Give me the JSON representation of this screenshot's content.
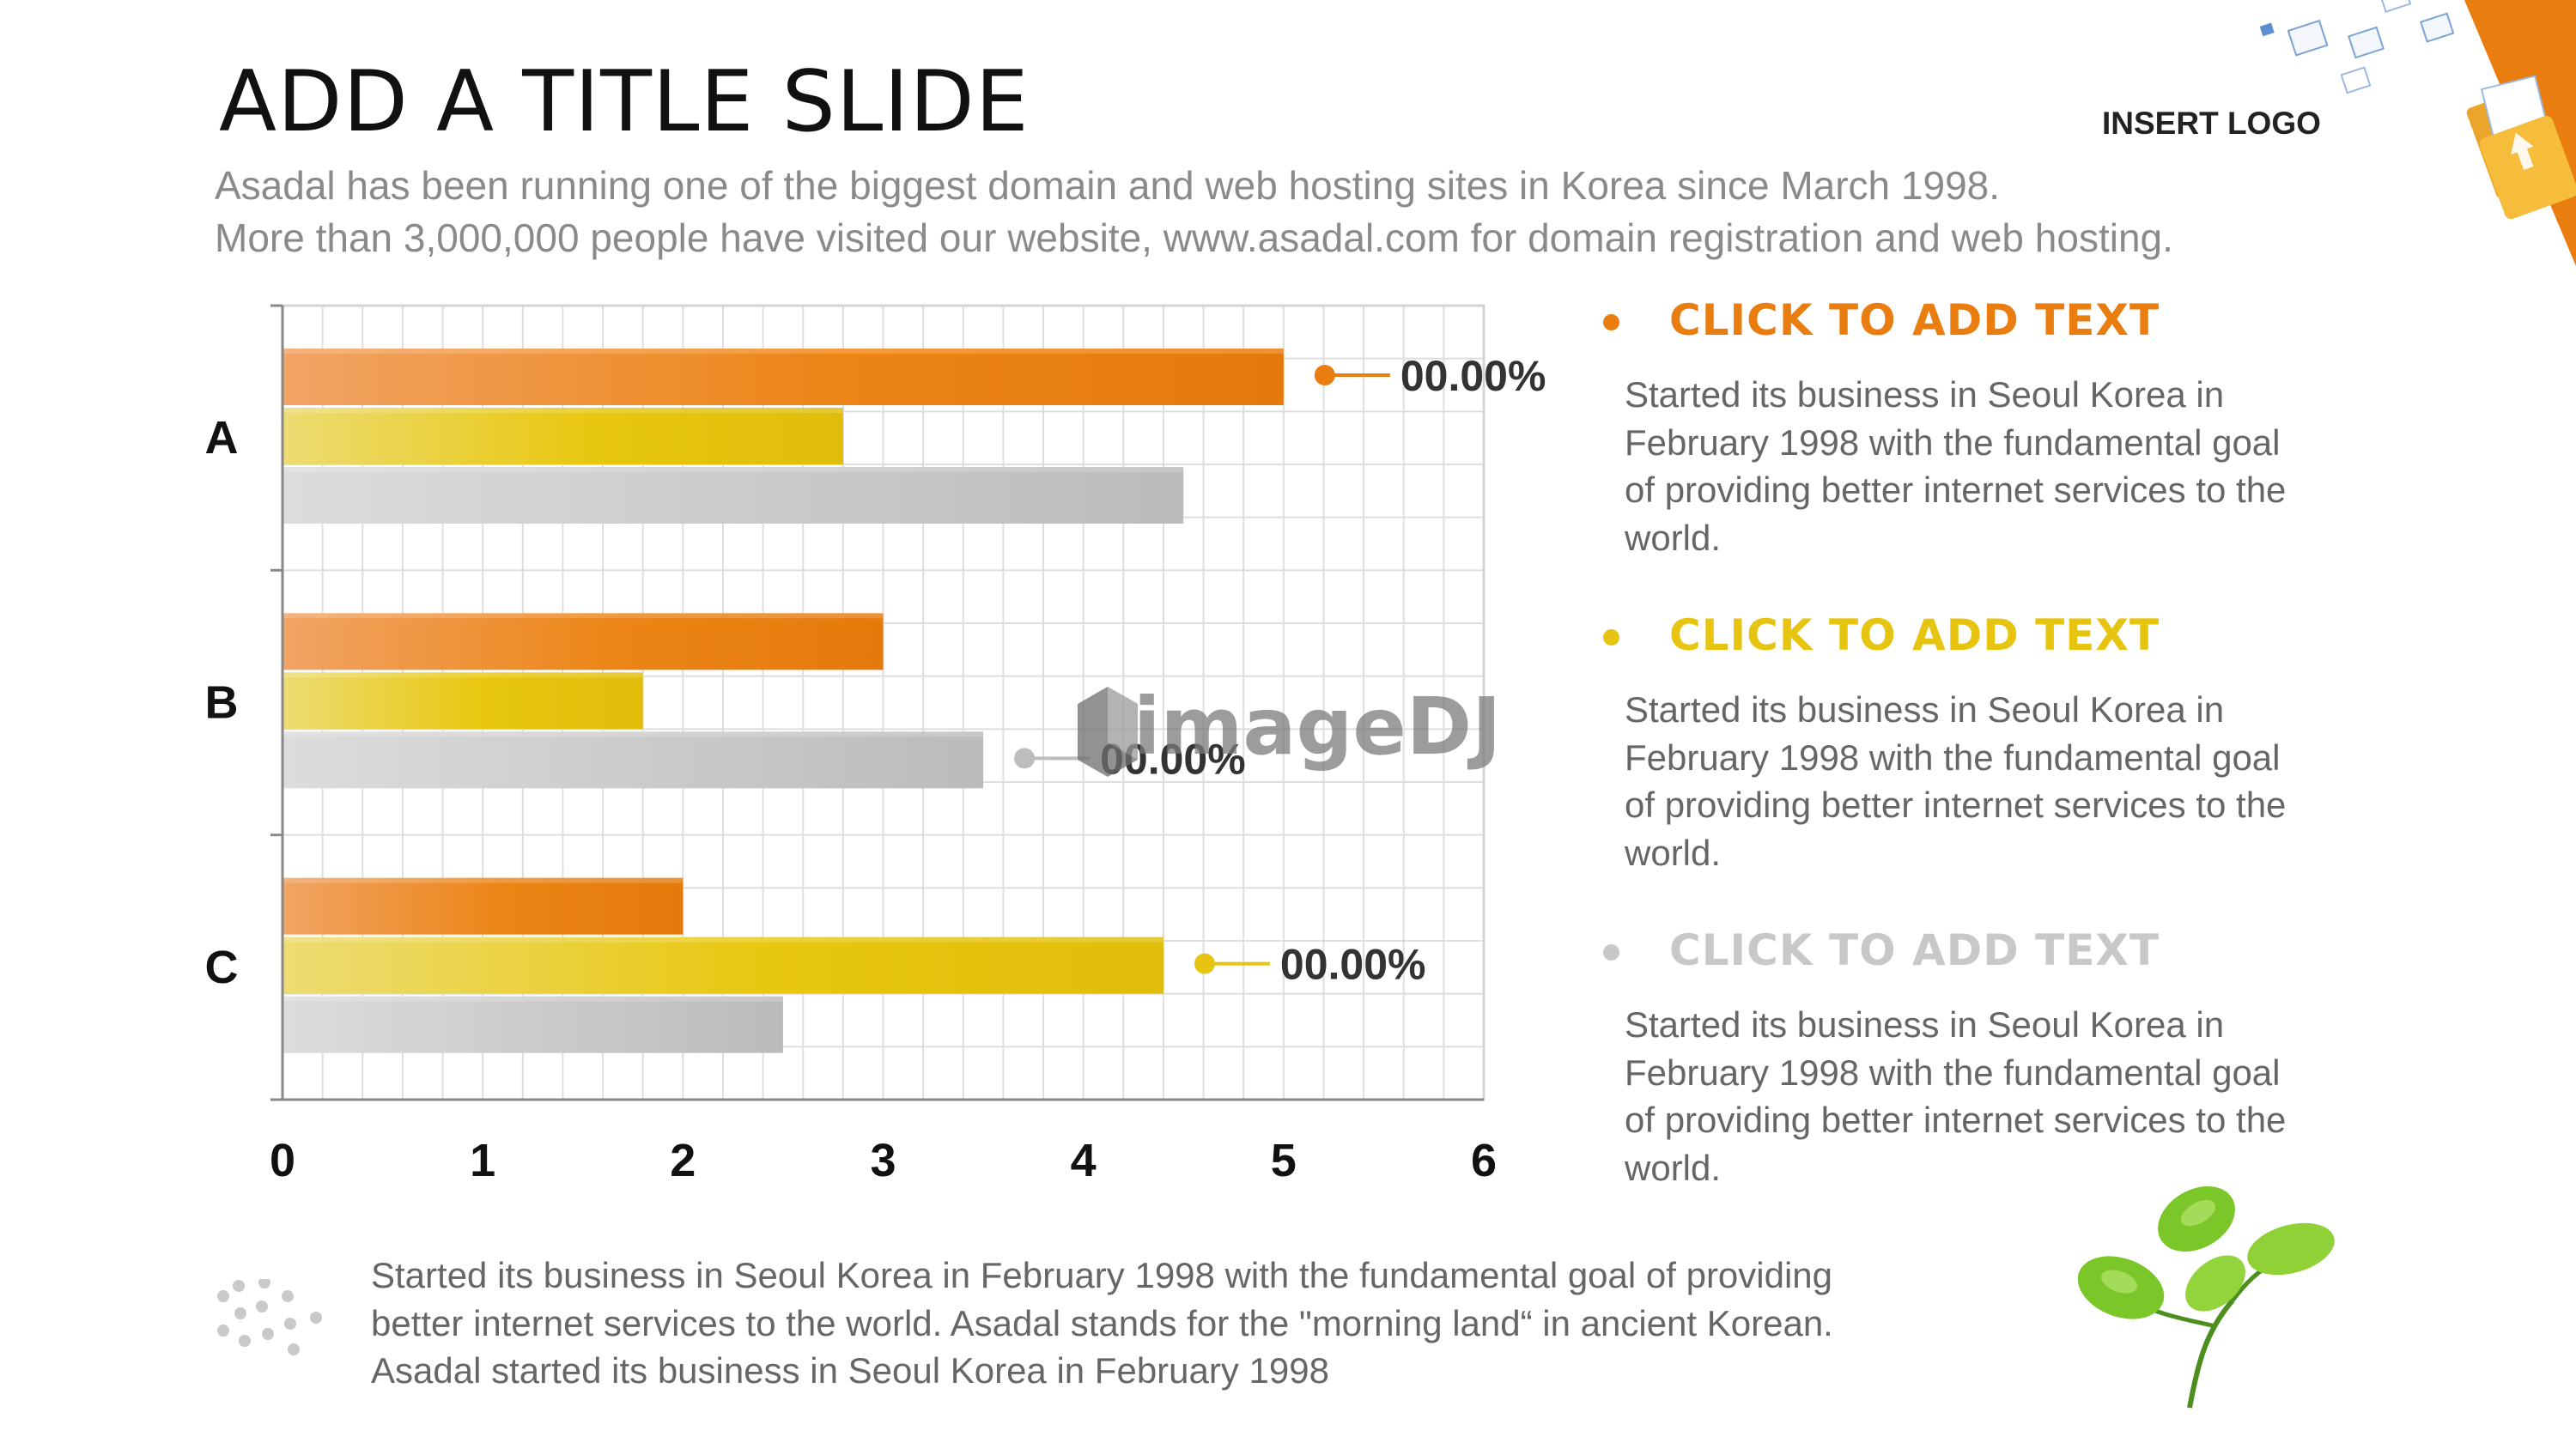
{
  "slide": {
    "title": "ADD A TITLE SLIDE",
    "subtitle_line1": "Asadal has been running one of the biggest domain and web hosting sites in Korea since March 1998.",
    "subtitle_line2": "More than 3,000,000 people have visited our website,  www.asadal.com for domain registration and web hosting.",
    "logo_label": "INSERT LOGO"
  },
  "chart_data": {
    "type": "bar",
    "orientation": "horizontal",
    "categories": [
      "A",
      "B",
      "C"
    ],
    "series": [
      {
        "values": [
          5,
          3,
          2
        ],
        "color": "#ea7d0f"
      },
      {
        "values": [
          2.8,
          1.8,
          4.4
        ],
        "color": "#e6c40f"
      },
      {
        "values": [
          4.5,
          3.5,
          2.5
        ],
        "color": "#bdbdbd"
      }
    ],
    "xlim": [
      0,
      6
    ],
    "xticks": [
      "0",
      "1",
      "2",
      "3",
      "4",
      "5",
      "6"
    ],
    "grid": true,
    "annotations": [
      {
        "text": "00.00%",
        "category": "A",
        "series": 0,
        "color": "#ea7d0f"
      },
      {
        "text": "00.00%",
        "category": "B",
        "series": 2,
        "color": "#bdbdbd"
      },
      {
        "text": "00.00%",
        "category": "C",
        "series": 1,
        "color": "#e6c40f"
      }
    ]
  },
  "watermark": "imageDJ",
  "bullets": [
    {
      "title": "CLICK TO ADD TEXT",
      "color": "#ea7d0f",
      "body": "Started its business in Seoul Korea  in\nFebruary 1998 with the fundamental goal\nof providing better internet services to the\nworld."
    },
    {
      "title": "CLICK TO ADD TEXT",
      "color": "#e6c40f",
      "body": "Started its business in Seoul Korea  in\nFebruary 1998 with the fundamental goal\nof providing better internet services to the\nworld."
    },
    {
      "title": "CLICK TO ADD TEXT",
      "color": "#c8c8c8",
      "body": "Started its business in Seoul Korea  in\nFebruary 1998 with the fundamental goal\nof providing better internet services to the\nworld."
    }
  ],
  "footer": {
    "text": "Started its business in Seoul Korea  in February 1998 with the fundamental goal of providing\nbetter internet services to the world. Asadal stands for the \"morning land“ in ancient Korean.\nAsadal started its business in Seoul Korea  in February 1998"
  },
  "colors": {
    "orange": "#ea7d0f",
    "yellow": "#e6c40f",
    "gray": "#bdbdbd",
    "text_gray": "#666666"
  }
}
